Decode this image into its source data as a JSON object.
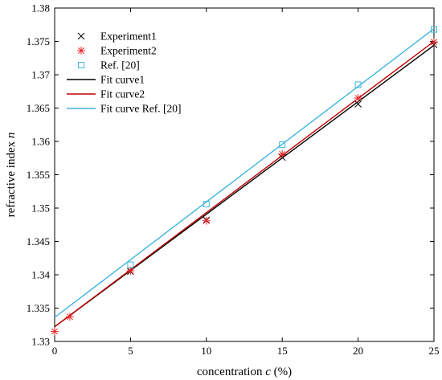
{
  "chart_data": {
    "type": "scatter",
    "xlabel_prefix": "concentration ",
    "xlabel_var": "c",
    "xlabel_suffix": " (%)",
    "ylabel_prefix": "refractive index ",
    "ylabel_var": "n",
    "xlim": [
      0,
      25
    ],
    "ylim": [
      1.33,
      1.38
    ],
    "xticks": [
      0,
      5,
      10,
      15,
      20,
      25
    ],
    "xtick_labels": [
      "0",
      "5",
      "10",
      "15",
      "20",
      "25"
    ],
    "yticks": [
      1.33,
      1.335,
      1.34,
      1.345,
      1.35,
      1.355,
      1.36,
      1.365,
      1.37,
      1.375,
      1.38
    ],
    "ytick_labels": [
      "1.33",
      "1.335",
      "1.34",
      "1.345",
      "1.35",
      "1.355",
      "1.36",
      "1.365",
      "1.37",
      "1.375",
      "1.38"
    ],
    "grid": false,
    "legend_position": "top-left",
    "series": [
      {
        "name": "Experiment1",
        "kind": "markers",
        "marker": "x",
        "color": "#000000",
        "x": [
          5,
          10,
          15,
          20,
          25
        ],
        "y": [
          1.3405,
          1.3482,
          1.3576,
          1.3656,
          1.3745
        ]
      },
      {
        "name": "Experiment2",
        "kind": "markers",
        "marker": "asterisk",
        "color": "#e8282b",
        "x": [
          0,
          1,
          5,
          10,
          15,
          20,
          25
        ],
        "y": [
          1.3315,
          1.3337,
          1.3406,
          1.3481,
          1.3581,
          1.3665,
          1.3749
        ]
      },
      {
        "name": "Ref. [20]",
        "kind": "markers",
        "marker": "square",
        "color": "#3fb4dd",
        "x": [
          5,
          10,
          15,
          20,
          25
        ],
        "y": [
          1.3415,
          1.3506,
          1.3595,
          1.3685,
          1.3768
        ]
      },
      {
        "name": "Fit curve1",
        "kind": "line",
        "color": "#000000",
        "x": [
          0,
          25
        ],
        "y": [
          1.3322,
          1.3744
        ]
      },
      {
        "name": "Fit curve2",
        "kind": "line",
        "color": "#c00000",
        "x": [
          0,
          25
        ],
        "y": [
          1.3322,
          1.375
        ]
      },
      {
        "name": "Fit curve Ref. [20]",
        "kind": "line",
        "color": "#3fb4dd",
        "x": [
          0,
          25
        ],
        "y": [
          1.3336,
          1.3769
        ]
      }
    ]
  }
}
